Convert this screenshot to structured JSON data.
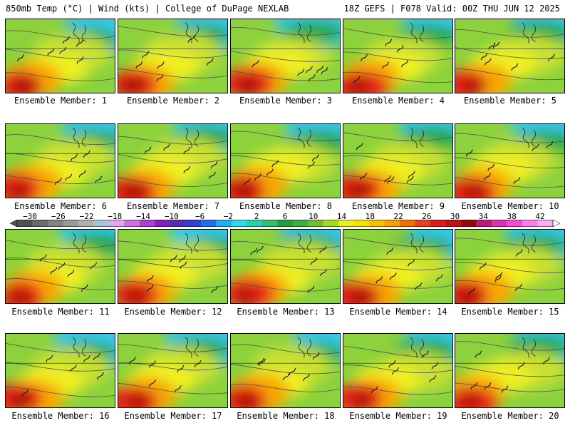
{
  "header": {
    "left": "850mb Temp (°C) | Wind (kts) | College of DuPage NEXLAB",
    "right": "18Z GEFS | F078 Valid: 00Z THU JUN 12 2025"
  },
  "panels": [
    {
      "caption": "Ensemble Member: 1"
    },
    {
      "caption": "Ensemble Member: 2"
    },
    {
      "caption": "Ensemble Member: 3"
    },
    {
      "caption": "Ensemble Member: 4"
    },
    {
      "caption": "Ensemble Member: 5"
    },
    {
      "caption": "Ensemble Member: 6"
    },
    {
      "caption": "Ensemble Member: 7"
    },
    {
      "caption": "Ensemble Member: 8"
    },
    {
      "caption": "Ensemble Member: 9"
    },
    {
      "caption": "Ensemble Member: 10"
    },
    {
      "caption": "Ensemble Member: 11"
    },
    {
      "caption": "Ensemble Member: 12"
    },
    {
      "caption": "Ensemble Member: 13"
    },
    {
      "caption": "Ensemble Member: 14"
    },
    {
      "caption": "Ensemble Member: 15"
    },
    {
      "caption": "Ensemble Member: 16"
    },
    {
      "caption": "Ensemble Member: 17"
    },
    {
      "caption": "Ensemble Member: 18"
    },
    {
      "caption": "Ensemble Member: 19"
    },
    {
      "caption": "Ensemble Member: 20"
    }
  ],
  "colorbar": {
    "ticks": [
      "−30",
      "−26",
      "−22",
      "−18",
      "−14",
      "−10",
      "−6",
      "−2",
      "2",
      "6",
      "10",
      "14",
      "18",
      "22",
      "26",
      "30",
      "34",
      "38",
      "42"
    ],
    "colors": [
      "#505050",
      "#6a6a6a",
      "#828282",
      "#9a9a9a",
      "#b0b0b0",
      "#a8c4da",
      "#e0a8e8",
      "#d070e0",
      "#b040d0",
      "#8020c0",
      "#5030b0",
      "#3040d0",
      "#2070e8",
      "#20b0f0",
      "#30d8e8",
      "#28d0b0",
      "#30c070",
      "#20a040",
      "#3cb040",
      "#70c030",
      "#a8d820",
      "#e8f020",
      "#f8e000",
      "#f8c000",
      "#f8a000",
      "#f07000",
      "#e84020",
      "#e01818",
      "#c01010",
      "#980808",
      "#c01878",
      "#e030b0",
      "#f050d0",
      "#f880e8",
      "#f8b0f0"
    ]
  }
}
